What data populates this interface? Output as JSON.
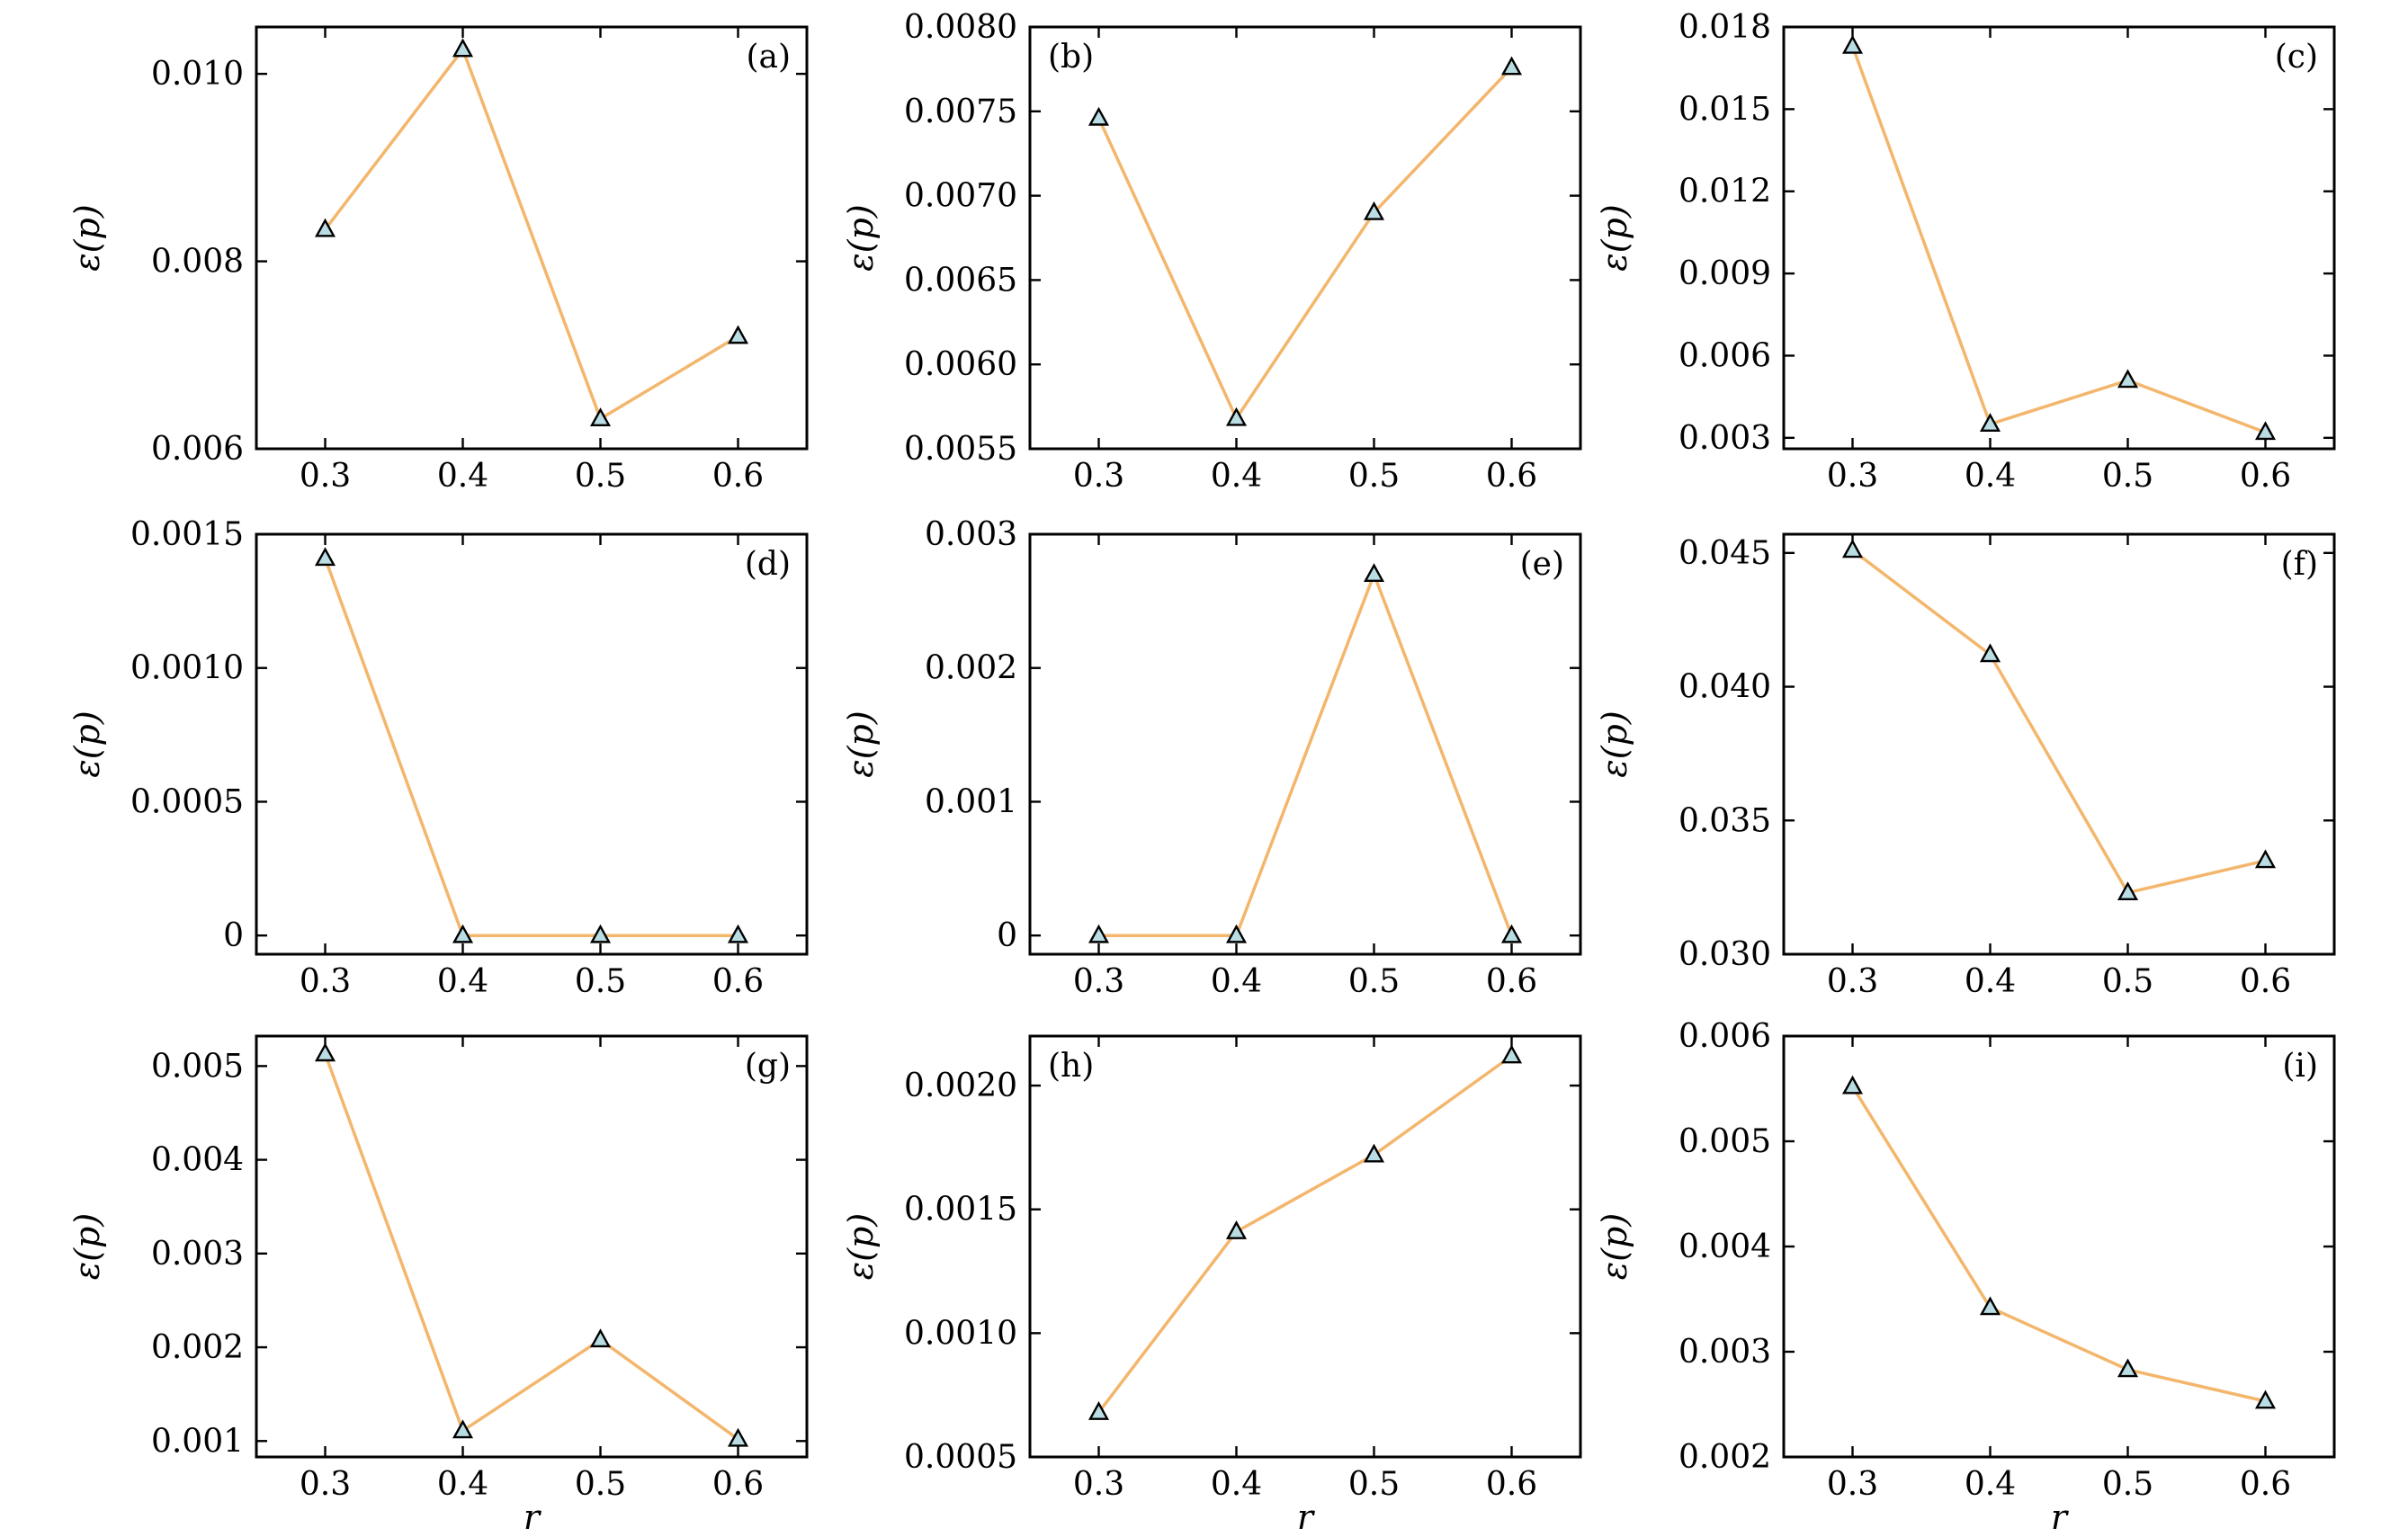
{
  "colors": {
    "line": "#f3b66c",
    "marker_fill": "#b9dde3",
    "marker_edge": "#000000",
    "axes": "#000000"
  },
  "chart_data": [
    {
      "type": "line",
      "panel": "(a)",
      "ylabel": "ε(p)",
      "xlabel": "",
      "x": [
        0.3,
        0.4,
        0.5,
        0.6
      ],
      "values": [
        0.00834,
        0.01026,
        0.00632,
        0.0072
      ],
      "ylim": [
        0.006,
        0.0105
      ],
      "yticks": [
        0.006,
        0.008,
        0.01
      ],
      "ytick_labels": [
        "0.006",
        "0.008",
        "0.010"
      ],
      "xticks": [
        0.3,
        0.4,
        0.5,
        0.6
      ],
      "xtick_labels": [
        "0.3",
        "0.4",
        "0.5",
        "0.6"
      ],
      "xlim": [
        0.25,
        0.65
      ],
      "label_pos": "top-right",
      "marker": "triangle",
      "grid": false
    },
    {
      "type": "line",
      "panel": "(b)",
      "ylabel": "ε(p)",
      "xlabel": "",
      "x": [
        0.3,
        0.4,
        0.5,
        0.6
      ],
      "values": [
        0.00746,
        0.00568,
        0.0069,
        0.00776
      ],
      "ylim": [
        0.0055,
        0.008
      ],
      "yticks": [
        0.0055,
        0.006,
        0.0065,
        0.007,
        0.0075,
        0.008
      ],
      "ytick_labels": [
        "0.0055",
        "0.0060",
        "0.0065",
        "0.0070",
        "0.0075",
        "0.0080"
      ],
      "xticks": [
        0.3,
        0.4,
        0.5,
        0.6
      ],
      "xtick_labels": [
        "0.3",
        "0.4",
        "0.5",
        "0.6"
      ],
      "xlim": [
        0.25,
        0.65
      ],
      "label_pos": "top-left",
      "marker": "triangle",
      "grid": false
    },
    {
      "type": "line",
      "panel": "(c)",
      "ylabel": "ε(p)",
      "xlabel": "",
      "x": [
        0.3,
        0.4,
        0.5,
        0.6
      ],
      "values": [
        0.0173,
        0.0035,
        0.0051,
        0.0032
      ],
      "ylim": [
        0.0026,
        0.018
      ],
      "yticks": [
        0.003,
        0.006,
        0.009,
        0.012,
        0.015,
        0.018
      ],
      "ytick_labels": [
        "0.003",
        "0.006",
        "0.009",
        "0.012",
        "0.015",
        "0.018"
      ],
      "xticks": [
        0.3,
        0.4,
        0.5,
        0.6
      ],
      "xtick_labels": [
        "0.3",
        "0.4",
        "0.5",
        "0.6"
      ],
      "xlim": [
        0.25,
        0.65
      ],
      "label_pos": "top-right",
      "marker": "triangle",
      "grid": false
    },
    {
      "type": "line",
      "panel": "(d)",
      "ylabel": "ε(p)",
      "xlabel": "",
      "x": [
        0.3,
        0.4,
        0.5,
        0.6
      ],
      "values": [
        0.00141,
        0.0,
        0.0,
        0.0
      ],
      "ylim": [
        -7e-05,
        0.0015
      ],
      "yticks": [
        0,
        0.0005,
        0.001,
        0.0015
      ],
      "ytick_labels": [
        "0",
        "0.0005",
        "0.0010",
        "0.0015"
      ],
      "xticks": [
        0.3,
        0.4,
        0.5,
        0.6
      ],
      "xtick_labels": [
        "0.3",
        "0.4",
        "0.5",
        "0.6"
      ],
      "xlim": [
        0.25,
        0.65
      ],
      "label_pos": "top-right",
      "marker": "triangle",
      "grid": false
    },
    {
      "type": "line",
      "panel": "(e)",
      "ylabel": "ε(p)",
      "xlabel": "",
      "x": [
        0.3,
        0.4,
        0.5,
        0.6
      ],
      "values": [
        0.0,
        0.0,
        0.0027,
        0.0
      ],
      "ylim": [
        -0.00014,
        0.003
      ],
      "yticks": [
        0,
        0.001,
        0.002,
        0.003
      ],
      "ytick_labels": [
        "0",
        "0.001",
        "0.002",
        "0.003"
      ],
      "xticks": [
        0.3,
        0.4,
        0.5,
        0.6
      ],
      "xtick_labels": [
        "0.3",
        "0.4",
        "0.5",
        "0.6"
      ],
      "xlim": [
        0.25,
        0.65
      ],
      "label_pos": "top-right",
      "marker": "triangle",
      "grid": false
    },
    {
      "type": "line",
      "panel": "(f)",
      "ylabel": "ε(p)",
      "xlabel": "",
      "x": [
        0.3,
        0.4,
        0.5,
        0.6
      ],
      "values": [
        0.0451,
        0.0412,
        0.0323,
        0.0335
      ],
      "ylim": [
        0.03,
        0.0457
      ],
      "yticks": [
        0.03,
        0.035,
        0.04,
        0.045
      ],
      "ytick_labels": [
        "0.030",
        "0.035",
        "0.040",
        "0.045"
      ],
      "xticks": [
        0.3,
        0.4,
        0.5,
        0.6
      ],
      "xtick_labels": [
        "0.3",
        "0.4",
        "0.5",
        "0.6"
      ],
      "xlim": [
        0.25,
        0.65
      ],
      "label_pos": "top-right",
      "marker": "triangle",
      "grid": false
    },
    {
      "type": "line",
      "panel": "(g)",
      "ylabel": "ε(p)",
      "xlabel": "r",
      "x": [
        0.3,
        0.4,
        0.5,
        0.6
      ],
      "values": [
        0.00513,
        0.00111,
        0.00208,
        0.00102
      ],
      "ylim": [
        0.00083,
        0.00532
      ],
      "yticks": [
        0.001,
        0.002,
        0.003,
        0.004,
        0.005
      ],
      "ytick_labels": [
        "0.001",
        "0.002",
        "0.003",
        "0.004",
        "0.005"
      ],
      "xticks": [
        0.3,
        0.4,
        0.5,
        0.6
      ],
      "xtick_labels": [
        "0.3",
        "0.4",
        "0.5",
        "0.6"
      ],
      "xlim": [
        0.25,
        0.65
      ],
      "label_pos": "top-right",
      "marker": "triangle",
      "grid": false
    },
    {
      "type": "line",
      "panel": "(h)",
      "ylabel": "ε(p)",
      "xlabel": "r",
      "x": [
        0.3,
        0.4,
        0.5,
        0.6
      ],
      "values": [
        0.00068,
        0.00141,
        0.00172,
        0.00212
      ],
      "ylim": [
        0.0005,
        0.0022
      ],
      "yticks": [
        0.0005,
        0.001,
        0.0015,
        0.002
      ],
      "ytick_labels": [
        "0.0005",
        "0.0010",
        "0.0015",
        "0.0020"
      ],
      "xticks": [
        0.3,
        0.4,
        0.5,
        0.6
      ],
      "xtick_labels": [
        "0.3",
        "0.4",
        "0.5",
        "0.6"
      ],
      "xlim": [
        0.25,
        0.65
      ],
      "label_pos": "top-left",
      "marker": "triangle",
      "grid": false
    },
    {
      "type": "line",
      "panel": "(i)",
      "ylabel": "ε(p)",
      "xlabel": "r",
      "x": [
        0.3,
        0.4,
        0.5,
        0.6
      ],
      "values": [
        0.00552,
        0.00342,
        0.00283,
        0.00253
      ],
      "ylim": [
        0.002,
        0.006
      ],
      "yticks": [
        0.002,
        0.003,
        0.004,
        0.005,
        0.006
      ],
      "ytick_labels": [
        "0.002",
        "0.003",
        "0.004",
        "0.005",
        "0.006"
      ],
      "xticks": [
        0.3,
        0.4,
        0.5,
        0.6
      ],
      "xtick_labels": [
        "0.3",
        "0.4",
        "0.5",
        "0.6"
      ],
      "xlim": [
        0.25,
        0.65
      ],
      "label_pos": "top-right",
      "marker": "triangle",
      "grid": false
    }
  ]
}
